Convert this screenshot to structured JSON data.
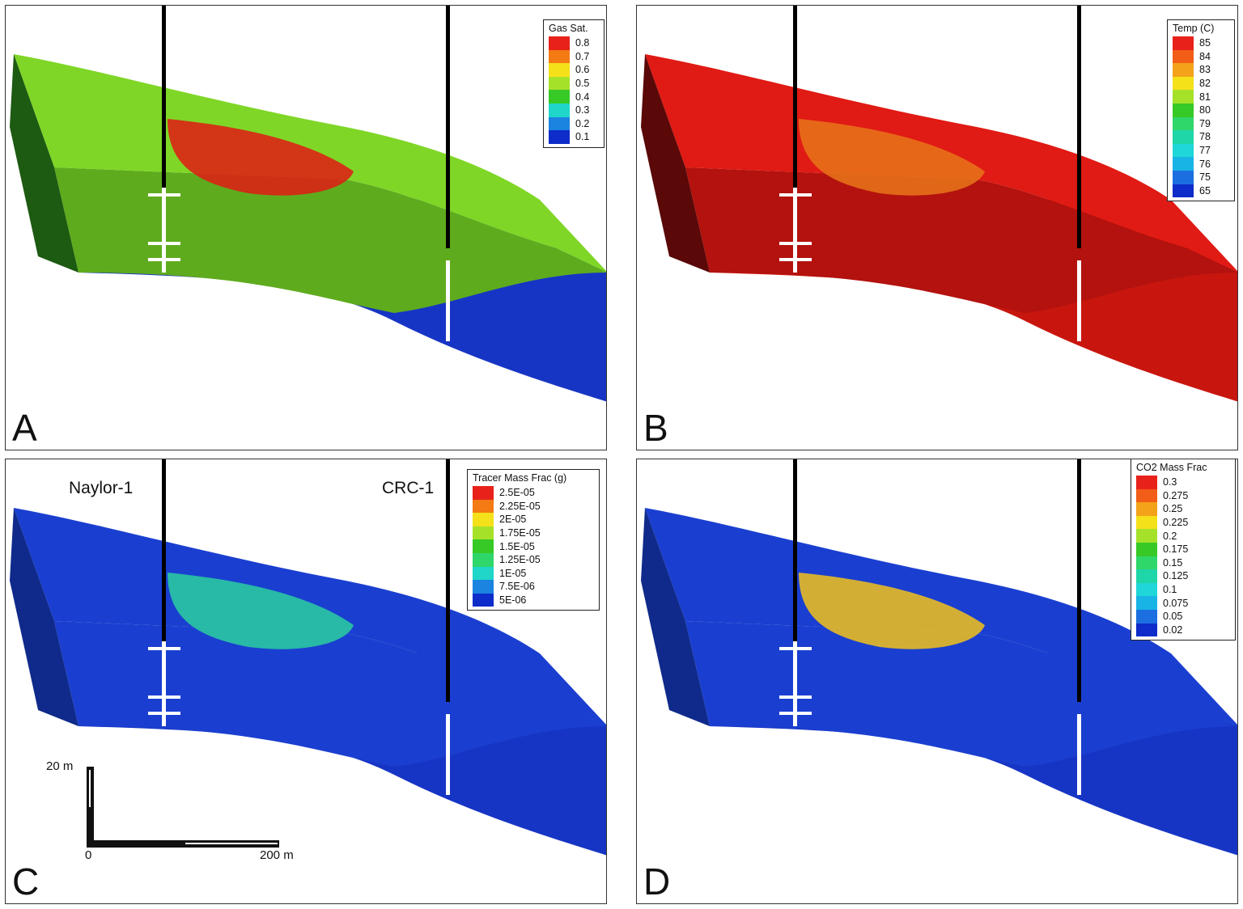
{
  "panels": [
    {
      "letter": "A",
      "legend": {
        "title": "Gas Sat.",
        "entries": [
          {
            "label": "0.8",
            "color": "#e8221a"
          },
          {
            "label": "0.7",
            "color": "#f47a13"
          },
          {
            "label": "0.6",
            "color": "#f4e11a"
          },
          {
            "label": "0.5",
            "color": "#a6e12a"
          },
          {
            "label": "0.4",
            "color": "#37c926"
          },
          {
            "label": "0.3",
            "color": "#1fd6c9"
          },
          {
            "label": "0.2",
            "color": "#1b83e0"
          },
          {
            "label": "0.1",
            "color": "#0d2cc9"
          }
        ]
      },
      "fill": {
        "base": "#5fab1e",
        "top": "#7fd627",
        "side": "#1d5a12",
        "deep": "#1735c4",
        "hot": "#e01a14"
      }
    },
    {
      "letter": "B",
      "legend": {
        "title": "Temp (C)",
        "entries": [
          {
            "label": "85",
            "color": "#e8221a"
          },
          {
            "label": "84",
            "color": "#f25e17"
          },
          {
            "label": "83",
            "color": "#f4a21a"
          },
          {
            "label": "82",
            "color": "#f4e11a"
          },
          {
            "label": "81",
            "color": "#a6e12a"
          },
          {
            "label": "80",
            "color": "#37c926"
          },
          {
            "label": "79",
            "color": "#2fd66a"
          },
          {
            "label": "78",
            "color": "#1fd6a8"
          },
          {
            "label": "77",
            "color": "#1fd6d9"
          },
          {
            "label": "76",
            "color": "#19b4e6"
          },
          {
            "label": "75",
            "color": "#1b6fe0"
          },
          {
            "label": "65",
            "color": "#0d2cc9"
          }
        ]
      },
      "fill": {
        "base": "#b3120e",
        "top": "#e01a14",
        "side": "#5a0808",
        "deep": "#c8160f",
        "hot": "#e8751a"
      }
    },
    {
      "letter": "C",
      "legend": {
        "title": "Tracer Mass Frac (g)",
        "entries": [
          {
            "label": "2.5E-05",
            "color": "#e8221a"
          },
          {
            "label": "2.25E-05",
            "color": "#f47a13"
          },
          {
            "label": "2E-05",
            "color": "#f4e11a"
          },
          {
            "label": "1.75E-05",
            "color": "#a6e12a"
          },
          {
            "label": "1.5E-05",
            "color": "#37c926"
          },
          {
            "label": "1.25E-05",
            "color": "#2fd66a"
          },
          {
            "label": "1E-05",
            "color": "#1fd6c9"
          },
          {
            "label": "7.5E-06",
            "color": "#1b83e0"
          },
          {
            "label": "5E-06",
            "color": "#0d2cc9"
          }
        ]
      },
      "fill": {
        "base": "#1a3fd0",
        "top": "#1a3fd0",
        "side": "#0f2a8a",
        "deep": "#1735c4",
        "hot": "#2bcfa0"
      },
      "wells": {
        "left": "Naylor-1",
        "right": "CRC-1"
      },
      "scale": {
        "vertical": "20 m",
        "origin": "0",
        "horizontal": "200 m"
      }
    },
    {
      "letter": "D",
      "legend": {
        "title": "CO2 Mass Frac",
        "entries": [
          {
            "label": "0.3",
            "color": "#e8221a"
          },
          {
            "label": "0.275",
            "color": "#f25e17"
          },
          {
            "label": "0.25",
            "color": "#f4a21a"
          },
          {
            "label": "0.225",
            "color": "#f4e11a"
          },
          {
            "label": "0.2",
            "color": "#a6e12a"
          },
          {
            "label": "0.175",
            "color": "#37c926"
          },
          {
            "label": "0.15",
            "color": "#2fd66a"
          },
          {
            "label": "0.125",
            "color": "#1fd6a8"
          },
          {
            "label": "0.1",
            "color": "#1fd6d9"
          },
          {
            "label": "0.075",
            "color": "#19b4e6"
          },
          {
            "label": "0.05",
            "color": "#1b6fe0"
          },
          {
            "label": "0.02",
            "color": "#0d2cc9"
          }
        ]
      },
      "fill": {
        "base": "#1a3fd0",
        "top": "#1a3fd0",
        "side": "#0f2a8a",
        "deep": "#1735c4",
        "hot": "#f4c21a"
      }
    }
  ]
}
